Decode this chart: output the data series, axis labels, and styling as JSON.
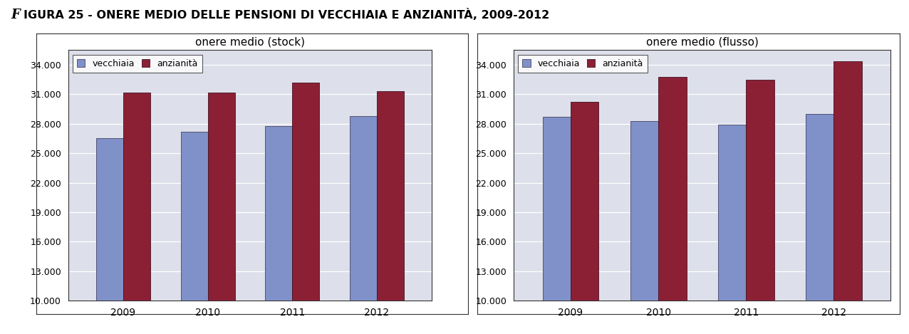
{
  "chart1_title": "onere medio (stock)",
  "chart2_title": "onere medio (flusso)",
  "years": [
    "2009",
    "2010",
    "2011",
    "2012"
  ],
  "stock_vecchiaia": [
    26500,
    27200,
    27800,
    28786
  ],
  "stock_anzianita": [
    31200,
    31200,
    32200,
    31292
  ],
  "flusso_vecchiaia": [
    28700,
    28300,
    27900,
    29000
  ],
  "flusso_anzianita": [
    30200,
    32800,
    32500,
    34350
  ],
  "color_vecchiaia": "#8090c8",
  "color_anzianita": "#8b2035",
  "legend_vecchiaia": "vecchiaia",
  "legend_anzianita": "anzianità",
  "yticks": [
    10000,
    13000,
    16000,
    19000,
    22000,
    25000,
    28000,
    31000,
    34000
  ],
  "ymin": 10000,
  "ymax": 35500,
  "plot_bg": "#dde0ea",
  "title_prefix_italic": "F",
  "title_rest": "IGURA 25 - ONERE MEDIO DELLE PENSIONI DI VECCHIAIA E ANZIANITÀ, 2009-2012"
}
